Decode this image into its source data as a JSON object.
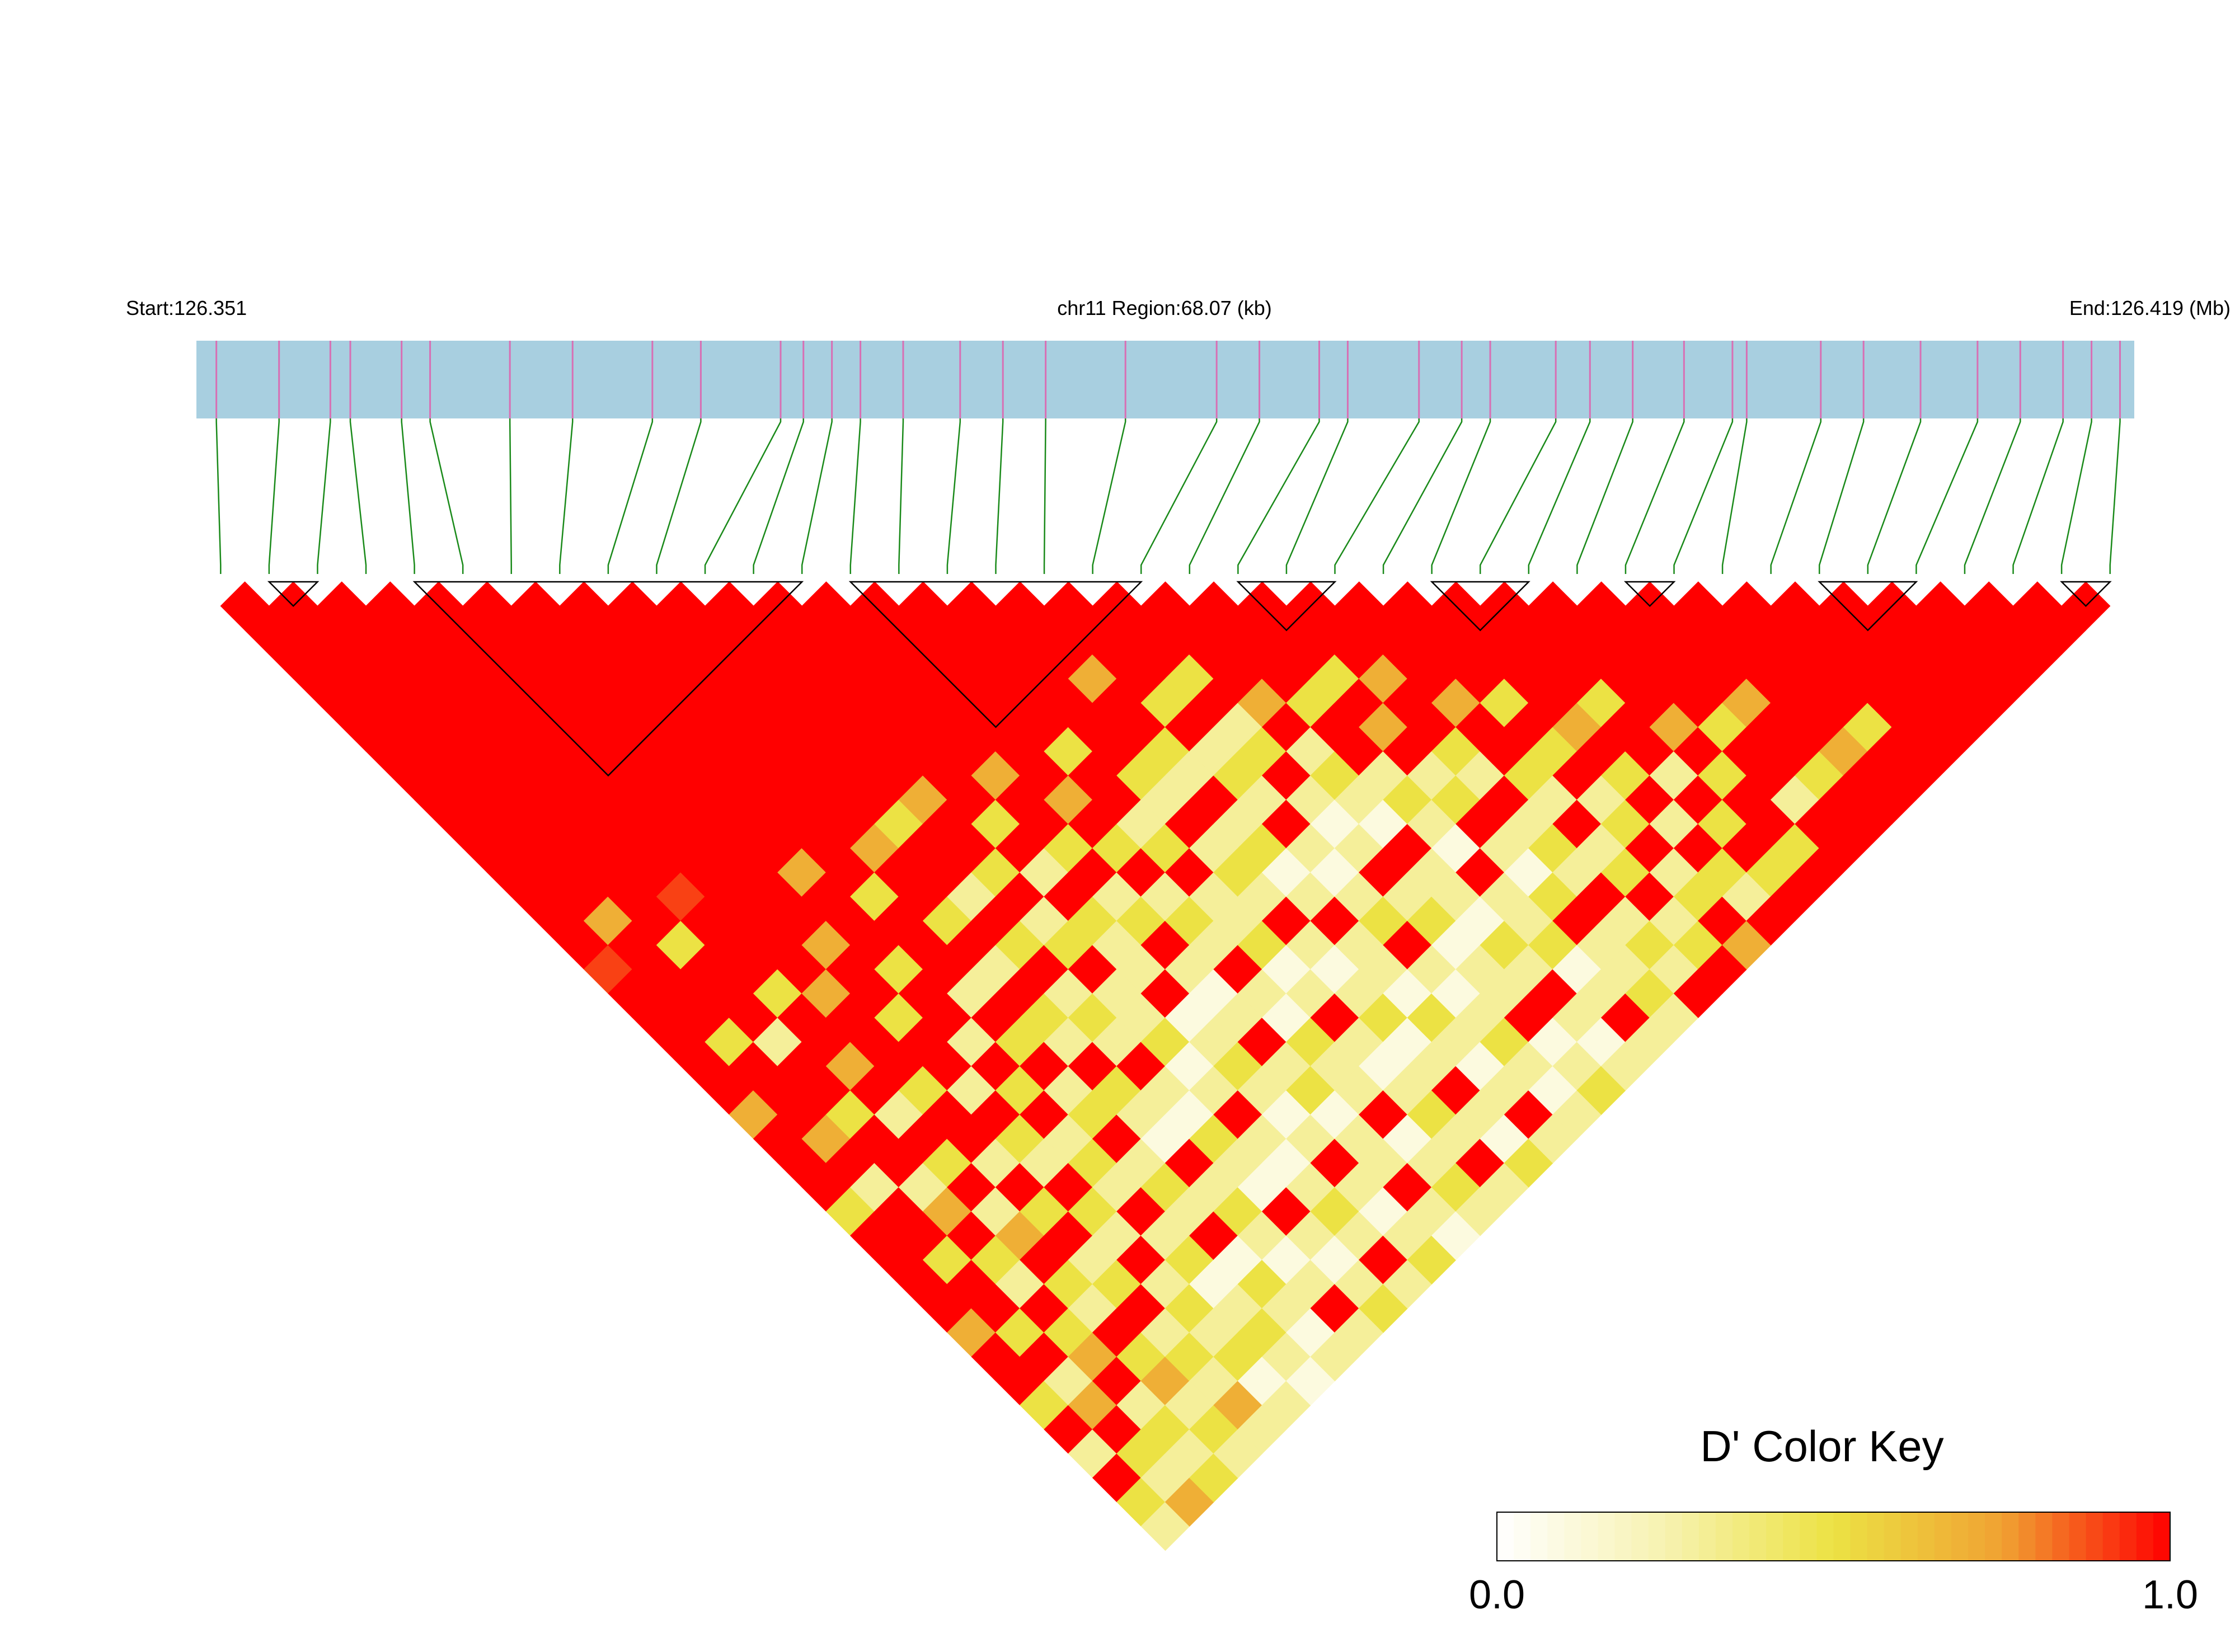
{
  "chart_data": {
    "type": "heatmap",
    "start_label": "Start:126.351",
    "region_label": "chr11 Region:68.07 (kb)",
    "end_label": "End:126.419 (Mb)",
    "xlim": [
      126.351,
      126.419
    ],
    "bar_color": "#a8cfe0",
    "marker_color": "#d86fb4",
    "connector_color": "#1a8a1a",
    "positions": [
      126.3517,
      126.3539,
      126.3557,
      126.3564,
      126.3582,
      126.3592,
      126.362,
      126.3642,
      126.367,
      126.3687,
      126.3715,
      126.3723,
      126.3733,
      126.3743,
      126.3758,
      126.3778,
      126.3793,
      126.3808,
      126.3836,
      126.3868,
      126.3883,
      126.3904,
      126.3914,
      126.3939,
      126.3954,
      126.3964,
      126.3987,
      126.3999,
      126.4014,
      126.4032,
      126.4049,
      126.4054,
      126.408,
      126.4095,
      126.4115,
      126.4135,
      126.415,
      126.4165,
      126.4175,
      126.4185
    ],
    "blocks": [
      [
        1,
        2
      ],
      [
        4,
        12
      ],
      [
        13,
        19
      ],
      [
        21,
        23
      ],
      [
        25,
        27
      ],
      [
        29,
        30
      ],
      [
        33,
        35
      ],
      [
        38,
        39
      ]
    ],
    "dprime": [
      [
        1,
        1,
        1,
        1,
        1,
        1,
        1,
        1,
        1,
        1,
        1,
        1,
        1,
        1,
        1,
        0.9,
        1,
        1,
        1,
        1,
        1,
        0.7,
        1,
        1,
        1,
        0.5,
        1,
        1,
        1,
        1,
        0.7,
        1,
        1,
        0.5,
        1,
        0.3,
        1,
        0.5,
        0.3
      ],
      [
        1,
        1,
        1,
        1,
        1,
        1,
        1,
        1,
        1,
        1,
        1,
        1,
        1,
        0.7,
        1,
        1,
        1,
        1,
        0.5,
        1,
        1,
        1,
        0.7,
        1,
        0.3,
        1,
        1,
        0.5,
        1,
        1,
        0.5,
        1,
        0.3,
        0.7,
        1,
        0.5,
        0.3,
        0.7
      ],
      [
        1,
        1,
        1,
        1,
        1,
        1,
        1,
        1,
        1,
        1,
        1,
        1,
        1,
        1,
        0.5,
        1,
        1,
        1,
        0.3,
        1,
        1,
        0.5,
        1,
        1,
        0.3,
        0.7,
        1,
        0.5,
        0.3,
        1,
        0.5,
        0.7,
        1,
        0.3,
        0.5,
        0.3,
        0.5
      ],
      [
        1,
        1,
        1,
        1,
        1,
        1,
        1,
        1,
        1,
        1,
        1,
        1,
        0.9,
        1,
        1,
        1,
        0.5,
        1,
        1,
        0.7,
        1,
        0.3,
        1,
        0.5,
        1,
        0.3,
        0.7,
        1,
        0.5,
        0.3,
        1,
        0.5,
        0.7,
        0.3,
        0.5,
        0.3
      ],
      [
        1,
        1,
        1,
        1,
        1,
        1,
        1,
        1,
        1,
        1,
        1,
        1,
        1,
        1,
        1,
        1,
        0.7,
        1,
        1,
        1,
        0.5,
        1,
        1,
        0.3,
        1,
        0.5,
        1,
        0.3,
        0.5,
        1,
        0.3,
        0.5,
        0.3,
        0.7,
        0.3
      ],
      [
        1,
        1,
        1,
        1,
        1,
        1,
        1,
        1,
        1,
        1,
        1,
        1,
        1,
        1,
        0.7,
        1,
        1,
        0.5,
        1,
        1,
        0.3,
        1,
        0.5,
        0.3,
        1,
        0.5,
        0.3,
        1,
        0.3,
        0.5,
        0.3,
        0.5,
        0.1,
        0.3
      ],
      [
        1,
        1,
        1,
        1,
        1,
        1,
        1,
        1,
        1,
        1,
        1,
        0.7,
        1,
        1,
        1,
        0.5,
        1,
        1,
        0.3,
        1,
        0.5,
        1,
        0.3,
        0.5,
        0.3,
        1,
        0.3,
        0.5,
        0.1,
        0.3,
        0.5,
        0.3,
        0.1
      ],
      [
        1,
        1,
        1,
        1,
        1,
        1,
        1,
        1,
        1,
        1,
        1,
        1,
        0.5,
        1,
        1,
        1,
        0.3,
        1,
        0.5,
        1,
        0.3,
        0.5,
        1,
        0.3,
        0.5,
        0.3,
        1,
        0.1,
        0.5,
        0.3,
        0.1,
        0.3
      ],
      [
        1,
        1,
        1,
        1,
        1,
        1,
        1,
        1,
        1,
        1,
        0.7,
        1,
        1,
        0.5,
        1,
        0.3,
        1,
        0.5,
        0.3,
        1,
        0.5,
        0.3,
        0.1,
        1,
        0.3,
        0.5,
        0.3,
        0.1,
        0.3,
        1,
        0.3
      ],
      [
        1,
        1,
        1,
        1,
        1,
        1,
        1,
        1,
        1,
        0.5,
        1,
        1,
        0.3,
        1,
        0.5,
        1,
        0.3,
        0.5,
        0.3,
        1,
        0.3,
        0.1,
        0.5,
        0.3,
        0.1,
        1,
        0.3,
        0.1,
        0.3,
        0.5
      ],
      [
        1,
        1,
        1,
        1,
        1,
        1,
        1,
        1,
        0.7,
        1,
        1,
        0.5,
        1,
        0.3,
        0.5,
        1,
        0.3,
        0.3,
        0.5,
        0.1,
        0.3,
        1,
        0.3,
        0.1,
        0.3,
        0.5,
        0.3,
        1,
        0.3
      ],
      [
        1,
        1,
        1,
        1,
        1,
        1,
        1,
        1,
        1,
        0.5,
        1,
        0.3,
        1,
        0.5,
        0.3,
        0.3,
        1,
        0.1,
        0.3,
        0.5,
        0.3,
        0.1,
        0.3,
        1,
        0.3,
        0.1,
        0.3,
        0.5
      ],
      [
        1,
        1,
        1,
        1,
        1,
        1,
        1,
        0.7,
        1,
        1,
        0.5,
        1,
        0.3,
        0.5,
        1,
        0.3,
        0.1,
        0.3,
        1,
        0.3,
        0.5,
        0.1,
        0.3,
        0.3,
        1,
        0.3,
        0.1
      ],
      [
        1,
        1,
        1,
        1,
        1,
        1,
        1,
        1,
        0.7,
        1,
        0.5,
        1,
        0.3,
        0.5,
        0.3,
        1,
        0.3,
        0.1,
        0.5,
        0.3,
        0.3,
        1,
        0.1,
        0.3,
        0.5,
        0.3
      ],
      [
        1,
        1,
        1,
        1,
        1,
        1,
        0.5,
        1,
        1,
        0.3,
        0.5,
        1,
        0.3,
        0.3,
        0.5,
        0.1,
        0.3,
        1,
        0.3,
        0.1,
        0.3,
        0.5,
        0.3,
        1,
        0.3
      ],
      [
        1,
        1,
        1,
        1,
        1,
        1,
        1,
        0.5,
        0.3,
        1,
        0.3,
        0.5,
        0.3,
        1,
        0.3,
        0.1,
        0.3,
        0.5,
        0.1,
        0.3,
        1,
        0.3,
        0.1,
        0.5
      ],
      [
        1,
        1,
        1,
        0.7,
        1,
        1,
        0.5,
        0.3,
        1,
        0.3,
        0.5,
        0.1,
        0.3,
        1,
        0.3,
        0.3,
        0.1,
        0.5,
        0.3,
        0.1,
        0.3,
        1,
        0.3
      ],
      [
        1,
        1,
        1,
        1,
        0.5,
        1,
        0.3,
        0.5,
        0.3,
        1,
        0.3,
        0.1,
        0.3,
        0.5,
        1,
        0.3,
        0.1,
        0.3,
        0.5,
        0.3,
        0.1,
        0.3
      ],
      [
        1,
        1,
        1,
        0.5,
        1,
        0.3,
        0.5,
        1,
        0.3,
        0.1,
        0.3,
        1,
        0.3,
        0.5,
        0.1,
        0.3,
        0.3,
        1,
        0.1,
        0.3,
        0.5
      ],
      [
        1,
        1,
        1,
        1,
        0.7,
        1,
        0.3,
        0.5,
        0.3,
        0.1,
        1,
        0.3,
        0.3,
        0.1,
        0.5,
        0.3,
        1,
        0.3,
        0.1,
        0.3
      ],
      [
        1,
        1,
        1,
        1,
        0.5,
        1,
        1,
        0.3,
        0.5,
        0.3,
        0.1,
        1,
        0.3,
        0.3,
        0.5,
        0.1,
        0.3,
        1,
        0.3
      ],
      [
        1,
        1,
        1,
        0.5,
        1,
        0.7,
        1,
        0.3,
        0.5,
        1,
        0.3,
        0.1,
        0.5,
        1,
        0.3,
        0.3,
        0.5,
        0.3
      ],
      [
        1,
        1,
        1,
        0.7,
        1,
        1,
        0.5,
        0.3,
        1,
        0.3,
        0.5,
        0.3,
        1,
        0.3,
        0.5,
        0.3,
        1
      ],
      [
        1,
        1,
        1,
        1,
        0.7,
        1,
        1,
        0.5,
        0.3,
        1,
        0.3,
        0.5,
        1,
        0.3,
        0.5,
        1
      ],
      [
        1,
        1,
        1,
        1,
        0.5,
        1,
        0.5,
        1,
        0.3,
        0.5,
        1,
        0.3,
        0.5,
        1,
        0.7
      ],
      [
        1,
        1,
        1,
        1,
        1,
        0.7,
        1,
        0.5,
        1,
        0.3,
        1,
        0.5,
        0.3,
        1
      ],
      [
        1,
        1,
        1,
        1,
        0.5,
        1,
        1,
        0.3,
        1,
        0.5,
        1,
        0.5,
        1
      ],
      [
        1,
        1,
        1,
        1,
        1,
        0.7,
        1,
        0.5,
        1,
        1,
        0.5,
        1
      ],
      [
        1,
        1,
        1,
        1,
        1,
        0.5,
        1,
        1,
        0.3,
        1,
        1
      ],
      [
        1,
        1,
        1,
        1,
        0.7,
        1,
        1,
        0.5,
        1,
        1
      ],
      [
        1,
        1,
        1,
        1,
        1,
        1,
        0.7,
        1,
        1
      ],
      [
        1,
        1,
        1,
        1,
        1,
        0.5,
        1,
        1
      ],
      [
        1,
        1,
        1,
        1,
        1,
        1,
        1
      ],
      [
        1,
        1,
        1,
        1,
        1,
        1
      ],
      [
        1,
        1,
        1,
        1,
        1
      ],
      [
        1,
        1,
        1,
        1
      ],
      [
        1,
        1,
        1
      ],
      [
        1,
        1
      ],
      [
        1
      ]
    ],
    "color_key": {
      "title": "D' Color Key",
      "colors": [
        "#ffffff",
        "#f7f2b0",
        "#ece244",
        "#f0a232",
        "#ff0000"
      ],
      "lim": [
        0,
        1
      ],
      "ticks": [
        {
          "value": 0,
          "label": "0.0"
        },
        {
          "value": 1,
          "label": "1.0"
        }
      ]
    }
  }
}
